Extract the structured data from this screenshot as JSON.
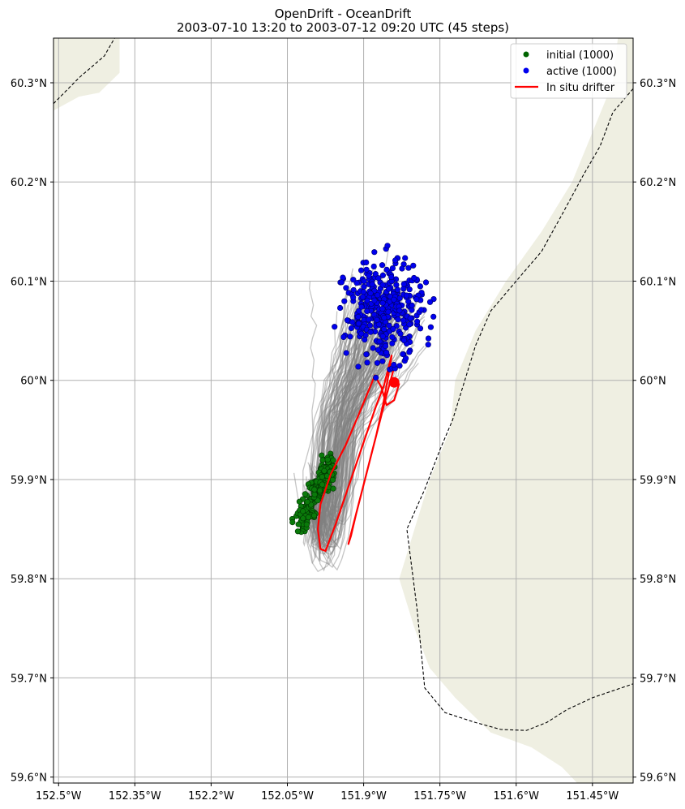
{
  "title": {
    "line1": "OpenDrift - OceanDrift",
    "line2": "2003-07-10 13:20 to 2003-07-12 09:20 UTC (45 steps)"
  },
  "map": {
    "lon_range": [
      -152.51,
      -151.37
    ],
    "lat_range": [
      59.594,
      60.345
    ],
    "lon_ticks": [
      {
        "value": -152.5,
        "label": "152.5°W"
      },
      {
        "value": -152.35,
        "label": "152.35°W"
      },
      {
        "value": -152.2,
        "label": "152.2°W"
      },
      {
        "value": -152.05,
        "label": "152.05°W"
      },
      {
        "value": -151.9,
        "label": "151.9°W"
      },
      {
        "value": -151.75,
        "label": "151.75°W"
      },
      {
        "value": -151.6,
        "label": "151.6°W"
      },
      {
        "value": -151.45,
        "label": "151.45°W"
      }
    ],
    "lat_ticks": [
      {
        "value": 59.6,
        "label": "59.6°N"
      },
      {
        "value": 59.7,
        "label": "59.7°N"
      },
      {
        "value": 59.8,
        "label": "59.8°N"
      },
      {
        "value": 59.9,
        "label": "59.9°N"
      },
      {
        "value": 60.0,
        "label": "60°N"
      },
      {
        "value": 60.1,
        "label": "60.1°N"
      },
      {
        "value": 60.2,
        "label": "60.2°N"
      },
      {
        "value": 60.3,
        "label": "60.3°N"
      }
    ],
    "grid": true,
    "land_color": "#efefe2",
    "grid_color": "#b0b0b0"
  },
  "legend": {
    "placement": "top-right",
    "entries": [
      {
        "label": "initial (1000)",
        "color": "#006400",
        "kind": "point"
      },
      {
        "label": "active (1000)",
        "color": "#0000ee",
        "kind": "point"
      },
      {
        "label": "In situ drifter",
        "color": "#ff0000",
        "kind": "line"
      }
    ]
  },
  "colors": {
    "trajectory": "#808080",
    "initial": "#0a7a0a",
    "active": "#0000ee",
    "drifter": "#ff0000",
    "coastline": "#000000"
  },
  "land": {
    "nw": [
      [
        -152.51,
        60.345
      ],
      [
        -152.38,
        60.345
      ],
      [
        -152.38,
        60.31
      ],
      [
        -152.42,
        60.29
      ],
      [
        -152.46,
        60.286
      ],
      [
        -152.51,
        60.272
      ]
    ],
    "east": [
      [
        -151.37,
        60.345
      ],
      [
        -151.37,
        59.594
      ],
      [
        -151.48,
        59.594
      ],
      [
        -151.51,
        59.61
      ],
      [
        -151.57,
        59.63
      ],
      [
        -151.65,
        59.645
      ],
      [
        -151.72,
        59.68
      ],
      [
        -151.77,
        59.71
      ],
      [
        -151.8,
        59.75
      ],
      [
        -151.83,
        59.8
      ],
      [
        -151.8,
        59.85
      ],
      [
        -151.77,
        59.9
      ],
      [
        -151.73,
        59.95
      ],
      [
        -151.72,
        60.0
      ],
      [
        -151.68,
        60.05
      ],
      [
        -151.62,
        60.1
      ],
      [
        -151.55,
        60.15
      ],
      [
        -151.49,
        60.2
      ],
      [
        -151.45,
        60.25
      ],
      [
        -151.41,
        60.3
      ],
      [
        -151.4,
        60.345
      ]
    ]
  },
  "coastlines": {
    "nw": [
      [
        -152.51,
        60.279
      ],
      [
        -152.46,
        60.305
      ],
      [
        -152.41,
        60.327
      ],
      [
        -152.39,
        60.345
      ]
    ],
    "east": [
      [
        -151.37,
        60.294
      ],
      [
        -151.41,
        60.27
      ],
      [
        -151.435,
        60.236
      ],
      [
        -151.47,
        60.205
      ],
      [
        -151.51,
        60.167
      ],
      [
        -151.55,
        60.13
      ],
      [
        -151.6,
        60.1
      ],
      [
        -151.65,
        60.07
      ],
      [
        -151.68,
        60.035
      ],
      [
        -151.725,
        59.96
      ],
      [
        -151.75,
        59.93
      ],
      [
        -151.78,
        59.89
      ],
      [
        -151.815,
        59.85
      ],
      [
        -151.795,
        59.77
      ],
      [
        -151.78,
        59.69
      ],
      [
        -151.74,
        59.665
      ],
      [
        -151.68,
        59.655
      ],
      [
        -151.63,
        59.648
      ],
      [
        -151.58,
        59.647
      ],
      [
        -151.54,
        59.655
      ],
      [
        -151.5,
        59.668
      ],
      [
        -151.45,
        59.68
      ],
      [
        -151.41,
        59.687
      ],
      [
        -151.37,
        59.694
      ]
    ]
  },
  "drifter_track": [
    [
      -151.84,
      60.013
    ],
    [
      -151.855,
      59.985
    ],
    [
      -151.87,
      59.955
    ],
    [
      -151.885,
      59.925
    ],
    [
      -151.9,
      59.895
    ],
    [
      -151.915,
      59.865
    ],
    [
      -151.925,
      59.843
    ],
    [
      -151.93,
      59.835
    ],
    [
      -151.92,
      59.855
    ],
    [
      -151.905,
      59.885
    ],
    [
      -151.89,
      59.915
    ],
    [
      -151.875,
      59.945
    ],
    [
      -151.862,
      59.975
    ],
    [
      -151.852,
      60.003
    ],
    [
      -151.845,
      60.025
    ],
    [
      -151.85,
      60.015
    ],
    [
      -151.86,
      59.995
    ],
    [
      -151.875,
      59.975
    ],
    [
      -151.895,
      59.945
    ],
    [
      -151.915,
      59.915
    ],
    [
      -151.935,
      59.885
    ],
    [
      -151.955,
      59.855
    ],
    [
      -151.975,
      59.828
    ],
    [
      -151.985,
      59.83
    ],
    [
      -151.99,
      59.85
    ],
    [
      -151.985,
      59.875
    ],
    [
      -151.965,
      59.905
    ],
    [
      -151.935,
      59.935
    ],
    [
      -151.91,
      59.965
    ],
    [
      -151.89,
      59.99
    ],
    [
      -151.878,
      60.005
    ],
    [
      -151.865,
      59.993
    ],
    [
      -151.855,
      59.975
    ],
    [
      -151.84,
      59.98
    ],
    [
      -151.83,
      59.997
    ]
  ],
  "drifter_end": [
    -151.84,
    59.998
  ],
  "initial_cloud": {
    "count": 260,
    "lon": [
      -152.025,
      -151.965
    ],
    "lat": [
      59.855,
      59.915
    ]
  },
  "active_cloud": {
    "count": 360,
    "lon": [
      -151.955,
      -151.765
    ],
    "lat": [
      60.01,
      60.13
    ]
  },
  "trajectory_count": 140
}
